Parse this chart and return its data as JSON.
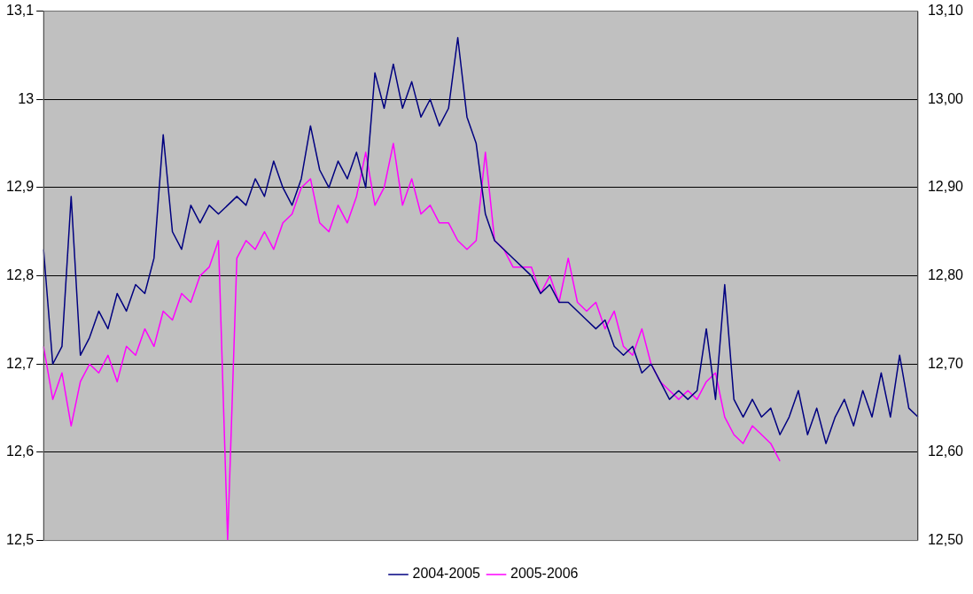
{
  "chart_data": {
    "type": "line",
    "categories": [
      null,
      null,
      null,
      null,
      null,
      null,
      null,
      null,
      null,
      null,
      null,
      null,
      null,
      null,
      null,
      null,
      null,
      null,
      null,
      null,
      null,
      null,
      null,
      null,
      null,
      null,
      null,
      null,
      null,
      null,
      null,
      null,
      null,
      null,
      null,
      null,
      null,
      null,
      null,
      null,
      null,
      null,
      null,
      null,
      null,
      null,
      null,
      null,
      null,
      null,
      null,
      null,
      null,
      null,
      null,
      null,
      null,
      null,
      null,
      null,
      null,
      null,
      null,
      null,
      null,
      null,
      null,
      null,
      null,
      null,
      null,
      null,
      null,
      null,
      null,
      null,
      null,
      null,
      null,
      null,
      null,
      null,
      null,
      null,
      null,
      null,
      null,
      null,
      null,
      null,
      null,
      null,
      null,
      null,
      null,
      null
    ],
    "series": [
      {
        "name": "2004-2005",
        "color": "#000080",
        "values": [
          12.83,
          12.7,
          12.72,
          12.89,
          12.71,
          12.73,
          12.76,
          12.74,
          12.78,
          12.76,
          12.79,
          12.78,
          12.82,
          12.96,
          12.85,
          12.83,
          12.88,
          12.86,
          12.88,
          12.87,
          12.88,
          12.89,
          12.88,
          12.91,
          12.89,
          12.93,
          12.9,
          12.88,
          12.91,
          12.97,
          12.92,
          12.9,
          12.93,
          12.91,
          12.94,
          12.9,
          13.03,
          12.99,
          13.04,
          12.99,
          13.02,
          12.98,
          13.0,
          12.97,
          12.99,
          13.07,
          12.98,
          12.95,
          12.87,
          12.84,
          12.83,
          12.82,
          12.81,
          12.8,
          12.78,
          12.79,
          12.77,
          12.77,
          12.76,
          12.75,
          12.74,
          12.75,
          12.72,
          12.71,
          12.72,
          12.69,
          12.7,
          12.68,
          12.66,
          12.67,
          12.66,
          12.67,
          12.74,
          12.66,
          12.79,
          12.66,
          12.64,
          12.66,
          12.64,
          12.65,
          12.62,
          12.64,
          12.67,
          12.62,
          12.65,
          12.61,
          12.64,
          12.66,
          12.63,
          12.67,
          12.64,
          12.69,
          12.64,
          12.71,
          12.65,
          12.64
        ]
      },
      {
        "name": "2005-2006",
        "color": "#ff00ff",
        "values": [
          12.72,
          12.66,
          12.69,
          12.63,
          12.68,
          12.7,
          12.69,
          12.71,
          12.68,
          12.72,
          12.71,
          12.74,
          12.72,
          12.76,
          12.75,
          12.78,
          12.77,
          12.8,
          12.81,
          12.84,
          12.5,
          12.82,
          12.84,
          12.83,
          12.85,
          12.83,
          12.86,
          12.87,
          12.9,
          12.91,
          12.86,
          12.85,
          12.88,
          12.86,
          12.89,
          12.94,
          12.88,
          12.9,
          12.95,
          12.88,
          12.91,
          12.87,
          12.88,
          12.86,
          12.86,
          12.84,
          12.83,
          12.84,
          12.94,
          12.84,
          12.83,
          12.81,
          12.81,
          12.81,
          12.78,
          12.8,
          12.77,
          12.82,
          12.77,
          12.76,
          12.77,
          12.74,
          12.76,
          12.72,
          12.71,
          12.74,
          12.7,
          12.68,
          12.67,
          12.66,
          12.67,
          12.66,
          12.68,
          12.69,
          12.64,
          12.62,
          12.61,
          12.63,
          12.62,
          12.61,
          12.59,
          null,
          null,
          null,
          null,
          null,
          null,
          null,
          null,
          null,
          null,
          null,
          null,
          null,
          null,
          null
        ]
      }
    ],
    "ylim": [
      12.5,
      13.1
    ],
    "yticks": [
      {
        "value": 12.5,
        "label": "12,5"
      },
      {
        "value": 12.6,
        "label": "12,6"
      },
      {
        "value": 12.7,
        "label": "12,7"
      },
      {
        "value": 12.8,
        "label": "12,8"
      },
      {
        "value": 12.9,
        "label": "12,9"
      },
      {
        "value": 13,
        "label": "13"
      },
      {
        "value": 13.1,
        "label": "13,1"
      }
    ],
    "y2lim": [
      12.5,
      13.1
    ],
    "y2ticks": [
      {
        "value": 12.5,
        "label": "12,50"
      },
      {
        "value": 12.6,
        "label": "12,60"
      },
      {
        "value": 12.7,
        "label": "12,70"
      },
      {
        "value": 12.8,
        "label": "12,80"
      },
      {
        "value": 12.9,
        "label": "12,90"
      },
      {
        "value": 13,
        "label": "13,00"
      },
      {
        "value": 13.1,
        "label": "13,10"
      }
    ],
    "grid": "y",
    "legend": "bottom",
    "marker": "none",
    "line_style": "solid"
  }
}
